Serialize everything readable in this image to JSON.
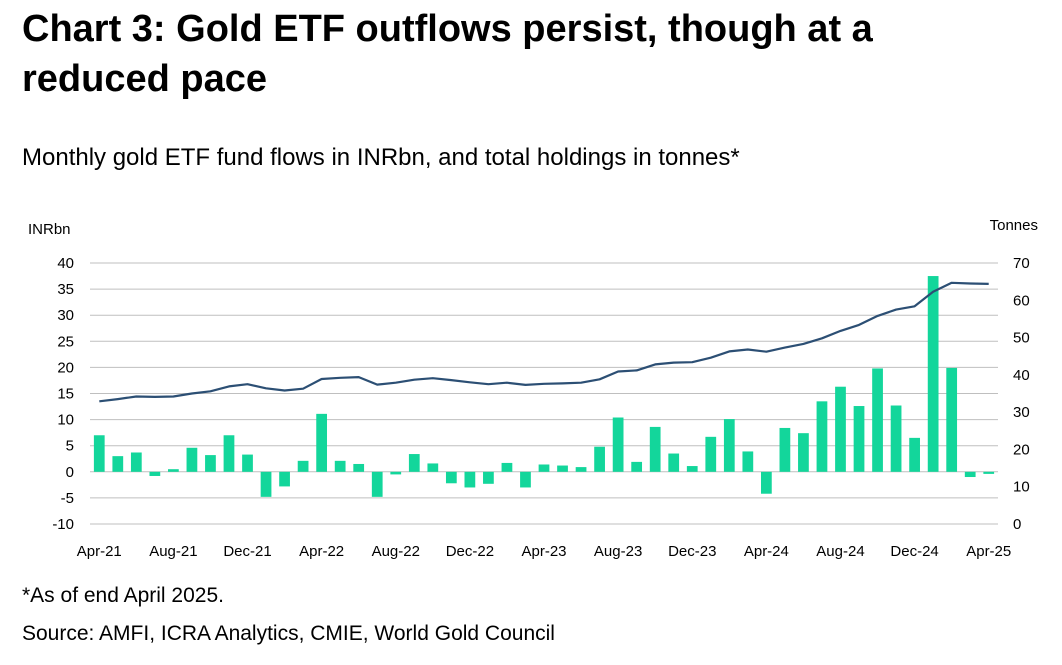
{
  "title": "Chart 3: Gold ETF outflows persist, though at a reduced pace",
  "subtitle": "Monthly gold ETF fund flows in INRbn, and total holdings in tonnes*",
  "footnote": "*As of end April 2025.",
  "source": "Source: AMFI, ICRA Analytics, CMIE, World Gold Council",
  "colors": {
    "bars": "#13D69B",
    "line": "#2C4F74",
    "grid": "#BFBFBF"
  },
  "chart_data": {
    "type": "bar+line",
    "left_axis_label": "INRbn",
    "right_axis_label": "Tonnes",
    "left_ylim": [
      -10,
      40
    ],
    "left_ticks": [
      "40",
      "35",
      "30",
      "25",
      "20",
      "15",
      "10",
      "5",
      "0",
      "-5",
      "-10"
    ],
    "right_ylim": [
      0,
      70
    ],
    "right_ticks": [
      "70",
      "60",
      "50",
      "40",
      "30",
      "20",
      "10",
      "0"
    ],
    "grid": true,
    "x_tick_labels": [
      "Apr-21",
      "Aug-21",
      "Dec-21",
      "Apr-22",
      "Aug-22",
      "Dec-22",
      "Apr-23",
      "Aug-23",
      "Dec-23",
      "Apr-24",
      "Aug-24",
      "Dec-24",
      "Apr-25"
    ],
    "categories": [
      "Apr-21",
      "May-21",
      "Jun-21",
      "Jul-21",
      "Aug-21",
      "Sep-21",
      "Oct-21",
      "Nov-21",
      "Dec-21",
      "Jan-22",
      "Feb-22",
      "Mar-22",
      "Apr-22",
      "May-22",
      "Jun-22",
      "Jul-22",
      "Aug-22",
      "Sep-22",
      "Oct-22",
      "Nov-22",
      "Dec-22",
      "Jan-23",
      "Feb-23",
      "Mar-23",
      "Apr-23",
      "May-23",
      "Jun-23",
      "Jul-23",
      "Aug-23",
      "Sep-23",
      "Oct-23",
      "Nov-23",
      "Dec-23",
      "Jan-24",
      "Feb-24",
      "Mar-24",
      "Apr-24",
      "May-24",
      "Jun-24",
      "Jul-24",
      "Aug-24",
      "Sep-24",
      "Oct-24",
      "Nov-24",
      "Dec-24",
      "Jan-25",
      "Feb-25",
      "Mar-25",
      "Apr-25"
    ],
    "series": [
      {
        "name": "Monthly gold ETF fund flows (INRbn)",
        "type": "bar",
        "axis": "left",
        "values": [
          7,
          3,
          3.7,
          -0.8,
          0.5,
          4.6,
          3.2,
          7,
          3.3,
          -4.8,
          -2.8,
          2.1,
          11.1,
          2.1,
          1.5,
          -4.8,
          -0.5,
          3.4,
          1.6,
          -2.2,
          -3,
          -2.3,
          1.7,
          -3,
          1.4,
          1.2,
          0.9,
          4.8,
          10.4,
          1.9,
          8.6,
          3.5,
          1.1,
          6.7,
          10.1,
          3.9,
          -4.2,
          8.4,
          7.4,
          13.5,
          16.3,
          12.6,
          19.8,
          12.7,
          6.5,
          37.5,
          19.9,
          -1,
          -0.4
        ]
      },
      {
        "name": "Total holdings (tonnes)",
        "type": "line",
        "axis": "right",
        "values": [
          32.9,
          33.5,
          34.2,
          34.1,
          34.2,
          35,
          35.6,
          36.9,
          37.5,
          36.4,
          35.8,
          36.3,
          38.9,
          39.2,
          39.4,
          37.4,
          37.9,
          38.7,
          39.1,
          38.6,
          38,
          37.5,
          37.9,
          37.3,
          37.6,
          37.7,
          37.9,
          38.8,
          40.9,
          41.2,
          42.8,
          43.3,
          43.4,
          44.6,
          46.3,
          46.8,
          46.2,
          47.3,
          48.3,
          49.8,
          51.8,
          53.4,
          55.8,
          57.5,
          58.4,
          62.3,
          64.7,
          64.5,
          64.4
        ]
      }
    ]
  }
}
